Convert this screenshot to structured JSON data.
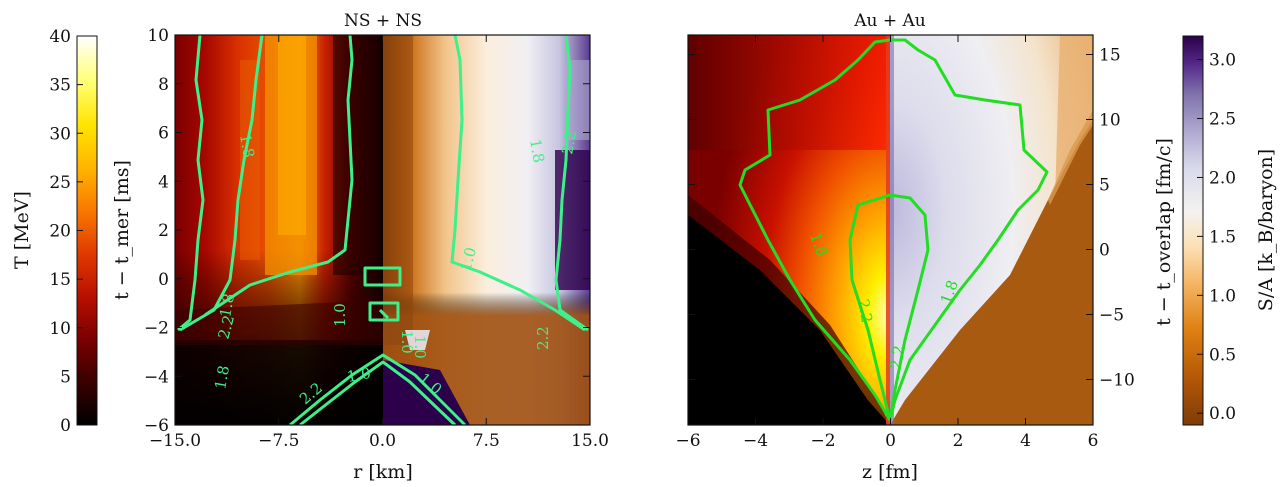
{
  "chart_data": [
    {
      "type": "heatmap",
      "title": "NS + NS",
      "xlabel": "r [km]",
      "ylabel": "t − t_mer [ms]",
      "xlim": [
        -15,
        15
      ],
      "ylim": [
        -6,
        10
      ],
      "x_ticks": [
        "−15.0",
        "−7.5",
        "0.0",
        "7.5",
        "15.0"
      ],
      "y_ticks": [
        "−6",
        "−4",
        "−2",
        "0",
        "2",
        "4",
        "6",
        "8",
        "10"
      ],
      "left_half": "T [MeV]",
      "right_half": "S/A [k_B/baryon]",
      "contour_color": "#3df08a",
      "contour_labels": [
        "1.8",
        "2.2",
        "1.0",
        "1.0",
        "1.0",
        "1.8",
        "2.2",
        "1.0",
        "1.8",
        "2.2",
        "2.2",
        "1.0",
        "1.0",
        "1.8"
      ]
    },
    {
      "type": "heatmap",
      "title": "Au + Au",
      "xlabel": "z [fm]",
      "ylabel": "t − t_overlap [fm/c]",
      "xlim": [
        -6,
        6
      ],
      "ylim": [
        -13.5,
        16.5
      ],
      "x_ticks": [
        "−6",
        "−4",
        "−2",
        "0",
        "2",
        "4",
        "6"
      ],
      "y_ticks": [
        "−10",
        "−5",
        "0",
        "5",
        "10",
        "15"
      ],
      "left_half": "T [MeV]",
      "right_half": "S/A [k_B/baryon]",
      "contour_color": "#22dd22",
      "contour_labels": [
        "1.8",
        "2.2",
        "2.2",
        "1.8"
      ]
    }
  ],
  "colorbar_T": {
    "label": "T [MeV]",
    "range": [
      0,
      40
    ],
    "ticks": [
      "0",
      "5",
      "10",
      "15",
      "20",
      "25",
      "30",
      "35",
      "40"
    ],
    "colors": [
      "#000000",
      "#3a0000",
      "#7a0000",
      "#b81000",
      "#e03a00",
      "#f87800",
      "#ffb400",
      "#ffe400",
      "#ffff70",
      "#ffffff"
    ]
  },
  "colorbar_S": {
    "label": "S/A [k_B/baryon]",
    "range": [
      -0.1,
      3.2
    ],
    "ticks": [
      "0.0",
      "0.5",
      "1.0",
      "1.5",
      "2.0",
      "2.5",
      "3.0"
    ],
    "colors": [
      "#7f3b08",
      "#b35806",
      "#e08214",
      "#f5b86a",
      "#fde0b6",
      "#f3f2f0",
      "#d8daeb",
      "#b2abd2",
      "#8073ac",
      "#542788",
      "#2d004b"
    ]
  }
}
